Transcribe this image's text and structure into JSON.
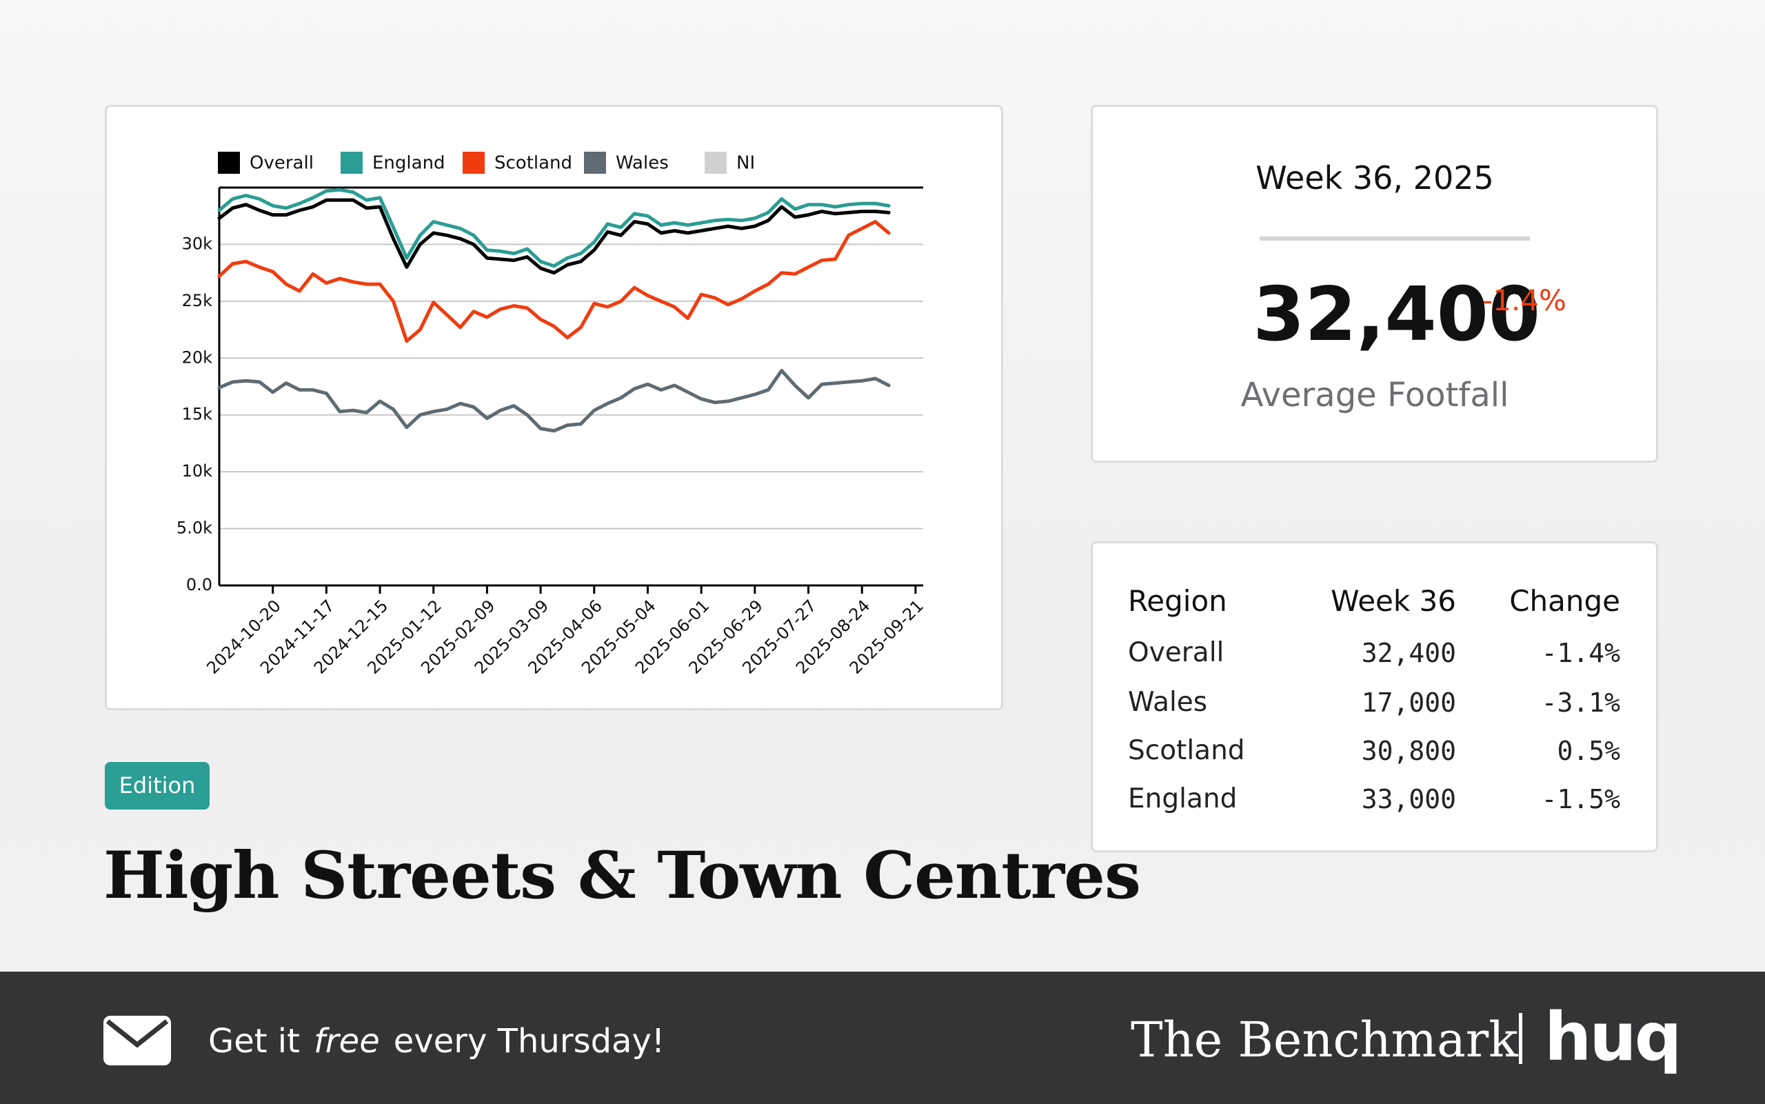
{
  "chart_data": {
    "type": "line",
    "x": [
      "2024-09-22",
      "2024-09-29",
      "2024-10-06",
      "2024-10-13",
      "2024-10-20",
      "2024-10-27",
      "2024-11-03",
      "2024-11-10",
      "2024-11-17",
      "2024-11-24",
      "2024-12-01",
      "2024-12-08",
      "2024-12-15",
      "2024-12-22",
      "2024-12-29",
      "2025-01-05",
      "2025-01-12",
      "2025-01-19",
      "2025-01-26",
      "2025-02-02",
      "2025-02-09",
      "2025-02-16",
      "2025-02-23",
      "2025-03-02",
      "2025-03-09",
      "2025-03-16",
      "2025-03-23",
      "2025-03-30",
      "2025-04-06",
      "2025-04-13",
      "2025-04-20",
      "2025-04-27",
      "2025-05-04",
      "2025-05-11",
      "2025-05-18",
      "2025-05-25",
      "2025-06-01",
      "2025-06-08",
      "2025-06-15",
      "2025-06-22",
      "2025-06-29",
      "2025-07-06",
      "2025-07-13",
      "2025-07-20",
      "2025-07-27",
      "2025-08-03",
      "2025-08-10",
      "2025-08-17",
      "2025-08-24",
      "2025-08-31",
      "2025-09-07"
    ],
    "xlim": [
      "2024-09-22",
      "2025-09-25"
    ],
    "xticks": [
      "2024-10-20",
      "2024-11-17",
      "2024-12-15",
      "2025-01-12",
      "2025-02-09",
      "2025-03-09",
      "2025-04-06",
      "2025-05-04",
      "2025-06-01",
      "2025-06-29",
      "2025-07-27",
      "2025-08-24",
      "2025-09-21"
    ],
    "ylim": [
      0,
      35000
    ],
    "yticks": [
      {
        "value": 0,
        "label": "0.0"
      },
      {
        "value": 5000,
        "label": "5.0k"
      },
      {
        "value": 10000,
        "label": "10k"
      },
      {
        "value": 15000,
        "label": "15k"
      },
      {
        "value": 20000,
        "label": "20k"
      },
      {
        "value": 25000,
        "label": "25k"
      },
      {
        "value": 30000,
        "label": "30k"
      }
    ],
    "grid": true,
    "legend": "top",
    "series": [
      {
        "name": "Overall",
        "color": "#000000",
        "values": [
          32300,
          33200,
          33500,
          33000,
          32600,
          32600,
          33000,
          33300,
          33900,
          33900,
          33900,
          33200,
          33300,
          30500,
          28000,
          30000,
          31000,
          30800,
          30500,
          30000,
          28800,
          28700,
          28600,
          28900,
          27900,
          27500,
          28200,
          28500,
          29500,
          31100,
          30800,
          32000,
          31800,
          31000,
          31200,
          31000,
          31200,
          31400,
          31600,
          31400,
          31600,
          32100,
          33300,
          32400,
          32600,
          32900,
          32700,
          32800,
          32900,
          32900,
          32800
        ]
      },
      {
        "name": "England",
        "color": "#2a9d94",
        "values": [
          33000,
          34000,
          34300,
          34000,
          33400,
          33200,
          33600,
          34100,
          34700,
          34800,
          34600,
          33900,
          34100,
          31500,
          28800,
          30800,
          32000,
          31700,
          31400,
          30800,
          29500,
          29400,
          29200,
          29600,
          28500,
          28100,
          28800,
          29200,
          30200,
          31800,
          31500,
          32700,
          32500,
          31700,
          31900,
          31700,
          31900,
          32100,
          32200,
          32100,
          32300,
          32800,
          34000,
          33100,
          33500,
          33500,
          33300,
          33500,
          33600,
          33600,
          33400
        ]
      },
      {
        "name": "Scotland",
        "color": "#f03c0f",
        "values": [
          27200,
          28300,
          28500,
          28000,
          27600,
          26500,
          25900,
          27400,
          26600,
          27000,
          26700,
          26500,
          26500,
          25000,
          21500,
          22500,
          24900,
          23800,
          22700,
          24100,
          23600,
          24300,
          24600,
          24400,
          23400,
          22800,
          21800,
          22700,
          24800,
          24500,
          25000,
          26200,
          25500,
          25000,
          24500,
          23500,
          25600,
          25300,
          24700,
          25200,
          25900,
          26500,
          27500,
          27400,
          28000,
          28600,
          28700,
          30800,
          31400,
          32000,
          31000
        ]
      },
      {
        "name": "Wales",
        "color": "#5f6b73",
        "values": [
          17400,
          17900,
          18000,
          17900,
          17000,
          17800,
          17200,
          17200,
          16900,
          15300,
          15400,
          15200,
          16200,
          15500,
          13900,
          15000,
          15300,
          15500,
          16000,
          15700,
          14700,
          15400,
          15800,
          15000,
          13800,
          13600,
          14100,
          14200,
          15400,
          16000,
          16500,
          17300,
          17700,
          17200,
          17600,
          17000,
          16400,
          16100,
          16200,
          16500,
          16800,
          17200,
          18900,
          17600,
          16500,
          17700,
          17800,
          17900,
          18000,
          18200,
          17600
        ]
      },
      {
        "name": "NI",
        "color": "#d0d0d0",
        "values": [
          null,
          null,
          null,
          null,
          null,
          null,
          null,
          null,
          null,
          null,
          null,
          null,
          null,
          null,
          null,
          null,
          null,
          null,
          null,
          null,
          null,
          null,
          null,
          null,
          null,
          null,
          null,
          null,
          null,
          null,
          null,
          null,
          null,
          null,
          null,
          null,
          null,
          null,
          null,
          null,
          null,
          null,
          null,
          null,
          null,
          null,
          null,
          null,
          null,
          null,
          null
        ]
      }
    ]
  },
  "summary": {
    "title": "Week 36, 2025",
    "value": "32,400",
    "change": "-1.4%",
    "label": "Average Footfall"
  },
  "table": {
    "columns": [
      "Region",
      "Week 36",
      "Change"
    ],
    "rows": [
      [
        "Overall",
        "32,400",
        "-1.4%"
      ],
      [
        "Wales",
        "17,000",
        "-3.1%"
      ],
      [
        "Scotland",
        "30,800",
        "0.5%"
      ],
      [
        "England",
        "33,000",
        "-1.5%"
      ]
    ]
  },
  "badge": "Edition",
  "headline": "High Streets & Town Centres",
  "footer": {
    "cta": [
      "Get it",
      "free",
      "every Thursday!"
    ],
    "brand": "The Benchmark",
    "logo": "huq"
  }
}
